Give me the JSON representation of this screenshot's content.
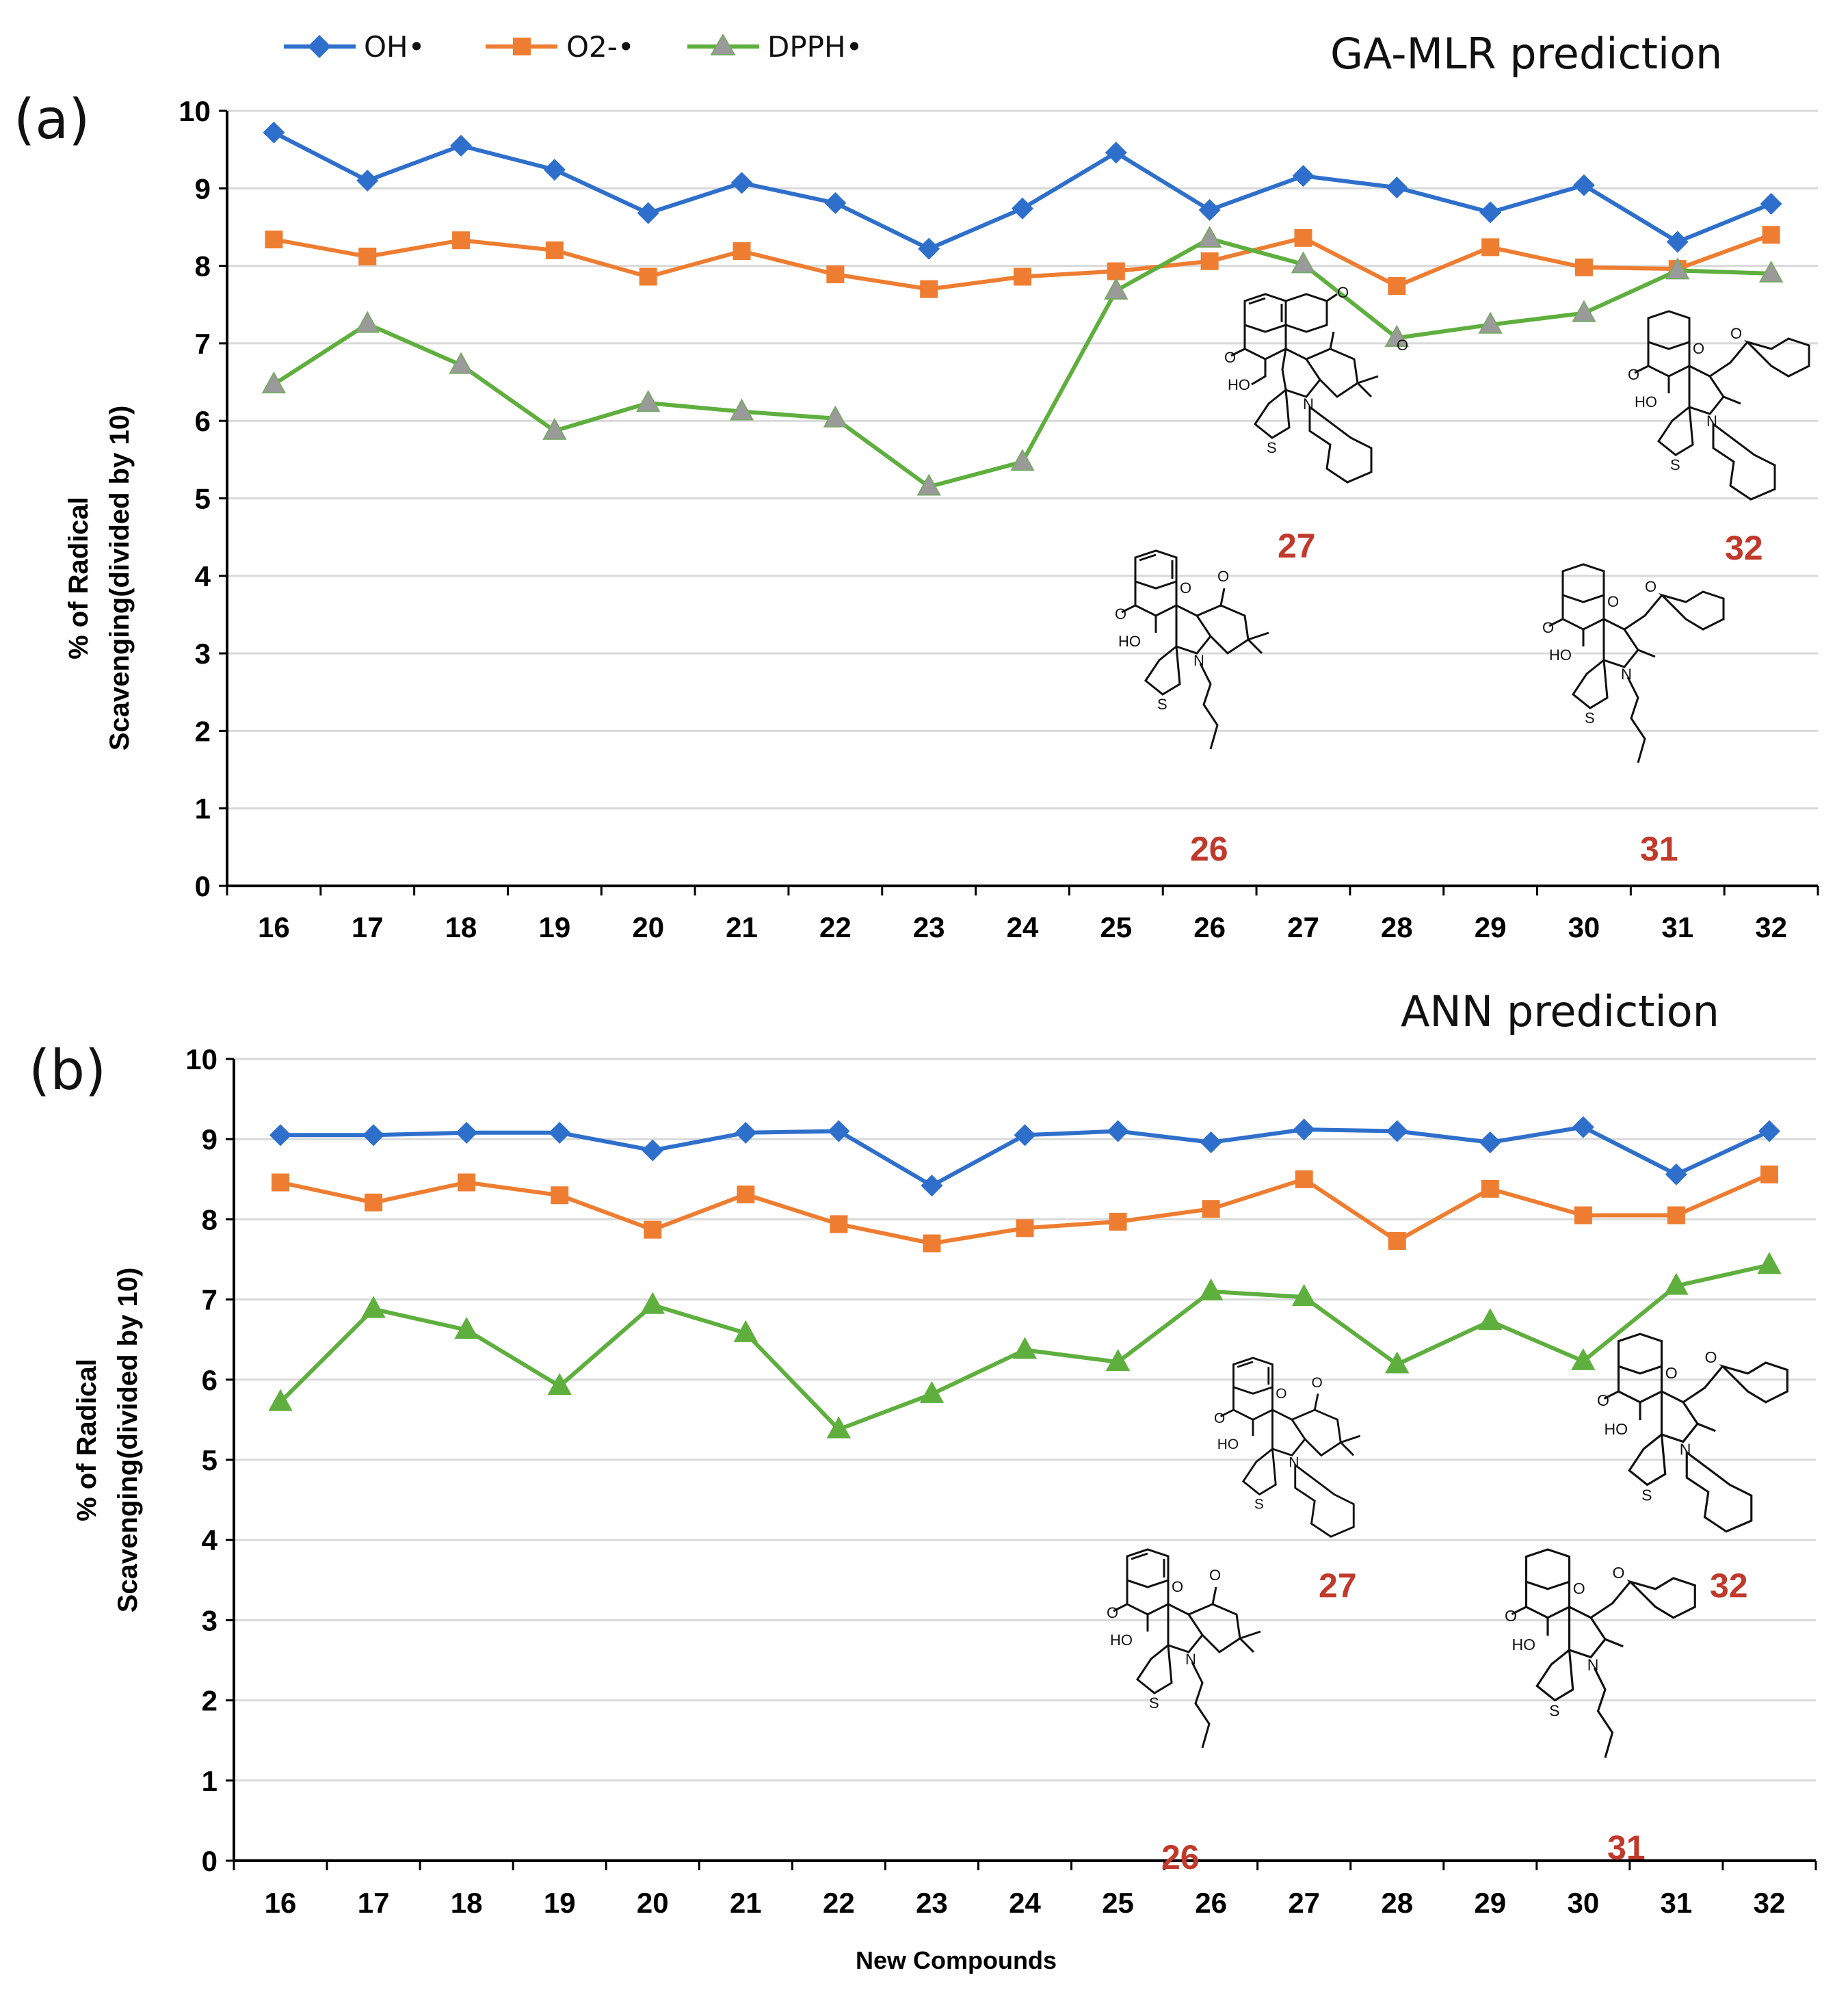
{
  "chart_data": [
    {
      "type": "line",
      "panel_label": "(a)",
      "title": "GA-MLR prediction",
      "xlabel": "",
      "ylabel_lines": [
        "% of Radical",
        "Scavenging(divided by 10)"
      ],
      "categories": [
        "16",
        "17",
        "18",
        "19",
        "20",
        "21",
        "22",
        "23",
        "24",
        "25",
        "26",
        "27",
        "28",
        "29",
        "30",
        "31",
        "32"
      ],
      "ylim": [
        0,
        10
      ],
      "yticks": [
        "0",
        "1",
        "2",
        "3",
        "4",
        "5",
        "6",
        "7",
        "8",
        "9",
        "10"
      ],
      "grid": true,
      "series": [
        {
          "name": "OH•",
          "color": "#2f6fcc",
          "marker": "diamond",
          "values": [
            9.72,
            9.1,
            9.55,
            9.24,
            8.68,
            9.07,
            8.81,
            8.22,
            8.74,
            9.46,
            8.72,
            9.16,
            9.01,
            8.69,
            9.04,
            8.31,
            8.8
          ]
        },
        {
          "name": "O2-•",
          "color": "#ee7d31",
          "marker": "square",
          "values": [
            8.34,
            8.12,
            8.33,
            8.2,
            7.86,
            8.19,
            7.89,
            7.7,
            7.86,
            7.93,
            8.06,
            8.36,
            7.74,
            8.24,
            7.98,
            7.96,
            8.4
          ]
        },
        {
          "name": "DPPH•",
          "color": "#5faf3f",
          "marker": "triangle",
          "values": [
            6.47,
            7.25,
            6.72,
            5.87,
            6.23,
            6.12,
            6.03,
            5.15,
            5.47,
            7.68,
            8.35,
            8.02,
            7.07,
            7.24,
            7.39,
            7.94,
            7.9
          ]
        }
      ],
      "compound_labels": [
        "26",
        "27",
        "31",
        "32"
      ]
    },
    {
      "type": "line",
      "panel_label": "(b)",
      "title": "ANN prediction",
      "xlabel": "New Compounds",
      "ylabel_lines": [
        "% of Radical",
        "Scavenging(divided by 10)"
      ],
      "categories": [
        "16",
        "17",
        "18",
        "19",
        "20",
        "21",
        "22",
        "23",
        "24",
        "25",
        "26",
        "27",
        "28",
        "29",
        "30",
        "31",
        "32"
      ],
      "ylim": [
        0,
        10
      ],
      "yticks": [
        "0",
        "1",
        "2",
        "3",
        "4",
        "5",
        "6",
        "7",
        "8",
        "9",
        "10"
      ],
      "grid": true,
      "series": [
        {
          "name": "OH•",
          "color": "#2f6fcc",
          "marker": "diamond",
          "values": [
            9.05,
            9.05,
            9.08,
            9.08,
            8.86,
            9.08,
            9.1,
            8.42,
            9.05,
            9.1,
            8.96,
            9.12,
            9.1,
            8.96,
            9.15,
            8.56,
            9.1
          ]
        },
        {
          "name": "O2-•",
          "color": "#ee7d31",
          "marker": "square",
          "values": [
            8.46,
            8.21,
            8.46,
            8.3,
            7.87,
            8.31,
            7.94,
            7.7,
            7.89,
            7.97,
            8.13,
            8.5,
            7.73,
            8.38,
            8.05,
            8.05,
            8.56
          ]
        },
        {
          "name": "DPPH•",
          "color": "#5faf3f",
          "marker": "triangle",
          "values": [
            5.72,
            6.88,
            6.62,
            5.92,
            6.93,
            6.58,
            5.38,
            5.82,
            6.37,
            6.22,
            7.1,
            7.03,
            6.19,
            6.73,
            6.23,
            7.17,
            7.43
          ]
        }
      ],
      "compound_labels": [
        "26",
        "27",
        "31",
        "32"
      ]
    }
  ],
  "structure_atom_labels": {
    "hydroxy": "HO",
    "carbonyl": "O",
    "nitrogen": "N",
    "sulfur": "S"
  },
  "colors": {
    "compound_label": "#c0392b",
    "grid": "#d9d9d9"
  }
}
